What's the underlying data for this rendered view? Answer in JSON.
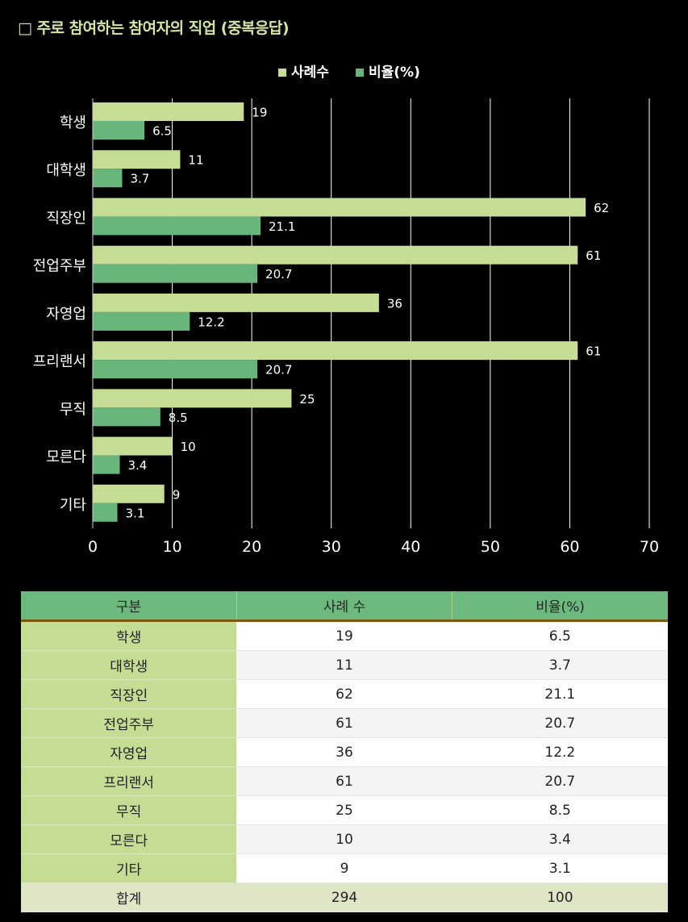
{
  "title": "□ 주로 참여하는 참여자의 직업 (중복응답)",
  "colors": {
    "cases": "#c5dd94",
    "ratio": "#68b67b",
    "grid": "#ffffff"
  },
  "chart_data": {
    "type": "bar",
    "orientation": "horizontal",
    "categories": [
      "학생",
      "대학생",
      "직장인",
      "전업주부",
      "자영업",
      "프리랜서",
      "무직",
      "모른다",
      "기타"
    ],
    "series": [
      {
        "name": "사례수",
        "values": [
          19,
          11,
          62,
          61,
          36,
          61,
          25,
          10,
          9
        ]
      },
      {
        "name": "비율(%)",
        "values": [
          6.5,
          3.7,
          21.1,
          20.7,
          12.2,
          20.7,
          8.5,
          3.4,
          3.1
        ]
      }
    ],
    "xlim": [
      0,
      70
    ],
    "xticks": [
      0,
      10,
      20,
      30,
      40,
      50,
      60,
      70
    ],
    "grid": true,
    "legend_position": "top-center",
    "data_labels": true
  },
  "table": {
    "headers": [
      "구분",
      "사례 수",
      "비율(%)"
    ],
    "rows": [
      [
        "학생",
        "19",
        "6.5"
      ],
      [
        "대학생",
        "11",
        "3.7"
      ],
      [
        "직장인",
        "62",
        "21.1"
      ],
      [
        "전업주부",
        "61",
        "20.7"
      ],
      [
        "자영업",
        "36",
        "12.2"
      ],
      [
        "프리랜서",
        "61",
        "20.7"
      ],
      [
        "무직",
        "25",
        "8.5"
      ],
      [
        "모른다",
        "10",
        "3.4"
      ],
      [
        "기타",
        "9",
        "3.1"
      ]
    ],
    "total": [
      "합계",
      "294",
      "100"
    ]
  }
}
